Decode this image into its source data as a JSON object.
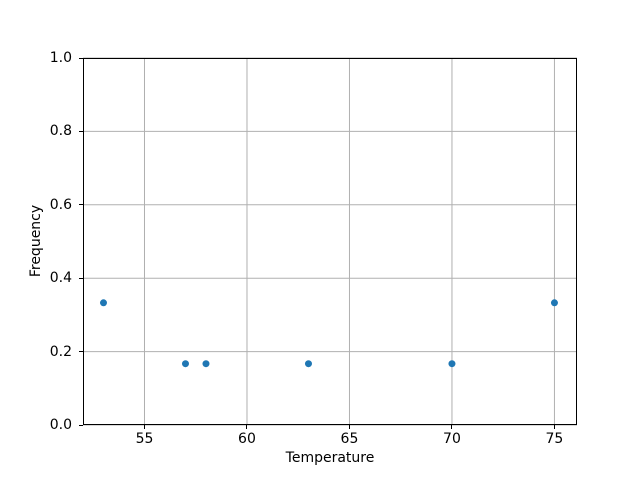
{
  "chart_data": {
    "type": "scatter",
    "title": "",
    "xlabel": "Temperature",
    "ylabel": "Frequency",
    "points": [
      {
        "x": 53,
        "y": 0.333
      },
      {
        "x": 57,
        "y": 0.167
      },
      {
        "x": 58,
        "y": 0.167
      },
      {
        "x": 63,
        "y": 0.167
      },
      {
        "x": 70,
        "y": 0.167
      },
      {
        "x": 75,
        "y": 0.333
      }
    ],
    "xlim": [
      52.0,
      76.1
    ],
    "ylim": [
      0.0,
      1.0
    ],
    "xticks": [
      55,
      60,
      65,
      70,
      75
    ],
    "xtick_labels": [
      "55",
      "60",
      "65",
      "70",
      "75"
    ],
    "yticks": [
      0.0,
      0.2,
      0.4,
      0.6,
      0.8,
      1.0
    ],
    "ytick_labels": [
      "0.0",
      "0.2",
      "0.4",
      "0.6",
      "0.8",
      "1.0"
    ],
    "grid": true,
    "legend": false,
    "marker_color": "#1f77b4",
    "marker_diameter_px": 7,
    "grid_color": "#b0b0b0",
    "axis_color": "#000000",
    "text_color": "#000000",
    "background_color": "#ffffff"
  }
}
